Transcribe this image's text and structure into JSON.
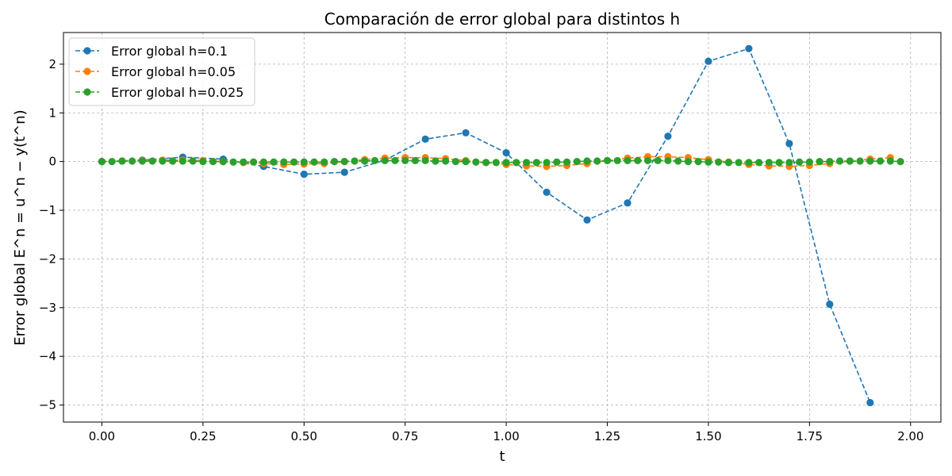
{
  "chart_data": {
    "type": "line",
    "title": "Comparación de error global para distintos h",
    "xlabel": "t",
    "ylabel": "Error global E^n = u^n − y(t^n)",
    "xlim": [
      -0.095,
      2.075
    ],
    "ylim": [
      -5.35,
      2.65
    ],
    "xticks": [
      0.0,
      0.25,
      0.5,
      0.75,
      1.0,
      1.25,
      1.5,
      1.75,
      2.0
    ],
    "xtick_labels": [
      "0.00",
      "0.25",
      "0.50",
      "0.75",
      "1.00",
      "1.25",
      "1.50",
      "1.75",
      "2.00"
    ],
    "yticks": [
      2,
      1,
      0,
      -1,
      -2,
      -3,
      -4,
      -5
    ],
    "ytick_labels": [
      "2",
      "1",
      "0",
      "−1",
      "−2",
      "−3",
      "−4",
      "−5"
    ],
    "grid": true,
    "legend_position": "top-left",
    "series": [
      {
        "name": "Error global h=0.1",
        "color": "#1f77b4",
        "linestyle": "dashed",
        "marker": "circle",
        "x": [
          0.0,
          0.1,
          0.2,
          0.3,
          0.4,
          0.5,
          0.6,
          0.7,
          0.8,
          0.9,
          1.0,
          1.1,
          1.2,
          1.3,
          1.4,
          1.5,
          1.6,
          1.7,
          1.8,
          1.9
        ],
        "values": [
          0.0,
          0.03,
          0.09,
          0.05,
          -0.1,
          -0.26,
          -0.22,
          0.03,
          0.46,
          0.59,
          0.18,
          -0.63,
          -1.2,
          -0.85,
          0.52,
          2.06,
          2.32,
          0.37,
          -2.93,
          -4.95
        ]
      },
      {
        "name": "Error global h=0.05",
        "color": "#ff7f0e",
        "linestyle": "dashed",
        "marker": "circle",
        "x": [
          0.0,
          0.05,
          0.1,
          0.15,
          0.2,
          0.25,
          0.3,
          0.35,
          0.4,
          0.45,
          0.5,
          0.55,
          0.6,
          0.65,
          0.7,
          0.75,
          0.8,
          0.85,
          0.9,
          0.95,
          1.0,
          1.05,
          1.1,
          1.15,
          1.2,
          1.25,
          1.3,
          1.35,
          1.4,
          1.45,
          1.5,
          1.55,
          1.6,
          1.65,
          1.7,
          1.75,
          1.8,
          1.85,
          1.9,
          1.95
        ],
        "values": [
          0.0,
          0.01,
          0.02,
          0.03,
          0.03,
          0.02,
          0.0,
          -0.02,
          -0.04,
          -0.06,
          -0.05,
          -0.04,
          0.0,
          0.04,
          0.07,
          0.08,
          0.08,
          0.06,
          0.02,
          -0.02,
          -0.06,
          -0.09,
          -0.1,
          -0.08,
          -0.04,
          0.02,
          0.07,
          0.1,
          0.1,
          0.08,
          0.04,
          -0.01,
          -0.06,
          -0.09,
          -0.1,
          -0.08,
          -0.04,
          0.01,
          0.05,
          0.08
        ]
      },
      {
        "name": "Error global h=0.025",
        "color": "#2ca02c",
        "linestyle": "dashed",
        "marker": "circle",
        "x": [
          0.0,
          0.025,
          0.05,
          0.075,
          0.1,
          0.125,
          0.15,
          0.175,
          0.2,
          0.225,
          0.25,
          0.275,
          0.3,
          0.325,
          0.35,
          0.375,
          0.4,
          0.425,
          0.45,
          0.475,
          0.5,
          0.525,
          0.55,
          0.575,
          0.6,
          0.625,
          0.65,
          0.675,
          0.7,
          0.725,
          0.75,
          0.775,
          0.8,
          0.825,
          0.85,
          0.875,
          0.9,
          0.925,
          0.95,
          0.975,
          1.0,
          1.025,
          1.05,
          1.075,
          1.1,
          1.125,
          1.15,
          1.175,
          1.2,
          1.225,
          1.25,
          1.275,
          1.3,
          1.325,
          1.35,
          1.375,
          1.4,
          1.425,
          1.45,
          1.475,
          1.5,
          1.525,
          1.55,
          1.575,
          1.6,
          1.625,
          1.65,
          1.675,
          1.7,
          1.725,
          1.75,
          1.775,
          1.8,
          1.825,
          1.85,
          1.875,
          1.9,
          1.925,
          1.95,
          1.975
        ],
        "values": [
          0.0,
          0.0,
          0.01,
          0.01,
          0.01,
          0.01,
          0.01,
          0.01,
          0.01,
          0.01,
          0.0,
          0.0,
          0.0,
          -0.01,
          -0.01,
          -0.01,
          -0.01,
          -0.01,
          -0.01,
          -0.01,
          -0.01,
          -0.01,
          -0.01,
          0.0,
          0.0,
          0.01,
          0.01,
          0.02,
          0.02,
          0.02,
          0.02,
          0.02,
          0.02,
          0.01,
          0.01,
          0.0,
          0.0,
          -0.01,
          -0.02,
          -0.02,
          -0.02,
          -0.02,
          -0.02,
          -0.02,
          -0.02,
          -0.01,
          -0.01,
          0.0,
          0.01,
          0.01,
          0.02,
          0.02,
          0.02,
          0.02,
          0.02,
          0.02,
          0.02,
          0.01,
          0.0,
          0.0,
          -0.01,
          -0.01,
          -0.02,
          -0.02,
          -0.02,
          -0.02,
          -0.02,
          -0.02,
          -0.02,
          -0.01,
          -0.01,
          0.0,
          0.0,
          0.01,
          0.01,
          0.01,
          0.01,
          0.01,
          0.01,
          0.0
        ]
      }
    ]
  }
}
